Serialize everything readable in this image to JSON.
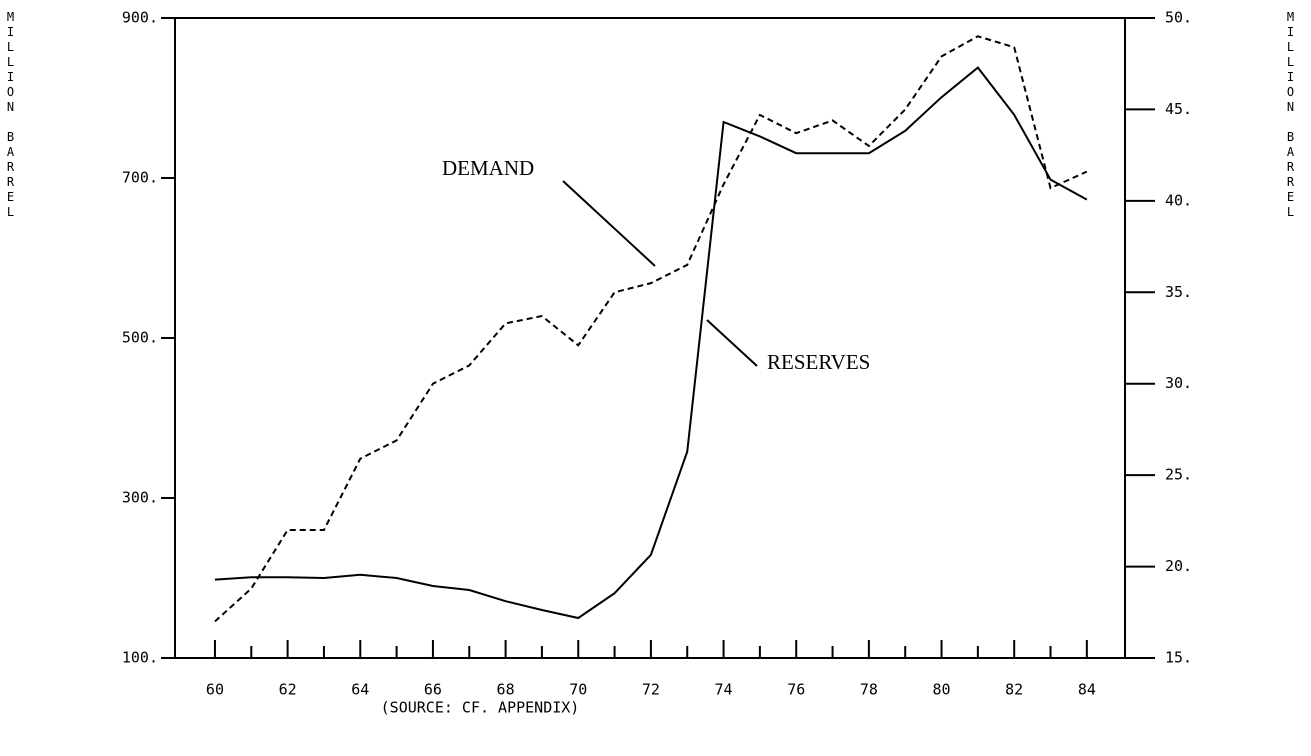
{
  "chart_data": {
    "type": "line",
    "xlabel": "(SOURCE: CF. APPENDIX)",
    "ylabel": "MILLION BARREL",
    "y2label": "MILLION BARREL",
    "x": [
      60,
      61,
      62,
      63,
      64,
      65,
      66,
      67,
      68,
      69,
      70,
      71,
      72,
      73,
      74,
      75,
      76,
      77,
      78,
      79,
      80,
      81,
      82,
      83,
      84
    ],
    "series": [
      {
        "name": "RESERVES",
        "color": "#000000",
        "dash": false,
        "axis": "y",
        "values": [
          198,
          201,
          201,
          200,
          204,
          200,
          190,
          185,
          171,
          160,
          150,
          181,
          229,
          358,
          770,
          752,
          731,
          731,
          731,
          759,
          801,
          838,
          779,
          698,
          673
        ]
      },
      {
        "name": "DEMAND",
        "color": "#000000",
        "dash": true,
        "axis": "y2",
        "values": [
          17.0,
          18.8,
          22.0,
          22.0,
          25.9,
          26.9,
          30.0,
          31.0,
          33.3,
          33.7,
          32.1,
          35.0,
          35.5,
          36.5,
          40.9,
          44.7,
          43.7,
          44.4,
          43.0,
          45.0,
          47.9,
          49.0,
          48.4,
          40.7,
          41.6
        ]
      }
    ],
    "xlim": [
      58.9,
      85.05
    ],
    "xticks": [
      60,
      62,
      64,
      66,
      68,
      70,
      72,
      74,
      76,
      78,
      80,
      82,
      84
    ],
    "xminorticks": [
      61,
      63,
      65,
      67,
      69,
      71,
      73,
      75,
      77,
      79,
      81,
      83
    ],
    "ylim": [
      100,
      900
    ],
    "yticks": [
      {
        "value": 100,
        "label": "100."
      },
      {
        "value": 300,
        "label": "300."
      },
      {
        "value": 500,
        "label": "500."
      },
      {
        "value": 700,
        "label": "700."
      },
      {
        "value": 900,
        "label": "900."
      }
    ],
    "y2lim": [
      15,
      50
    ],
    "y2ticks": [
      {
        "value": 15,
        "label": "15."
      },
      {
        "value": 20,
        "label": "20."
      },
      {
        "value": 25,
        "label": "25."
      },
      {
        "value": 30,
        "label": "30."
      },
      {
        "value": 35,
        "label": "35."
      },
      {
        "value": 40,
        "label": "40."
      },
      {
        "value": 45,
        "label": "45."
      },
      {
        "value": 50,
        "label": "50."
      }
    ],
    "grid": false
  }
}
